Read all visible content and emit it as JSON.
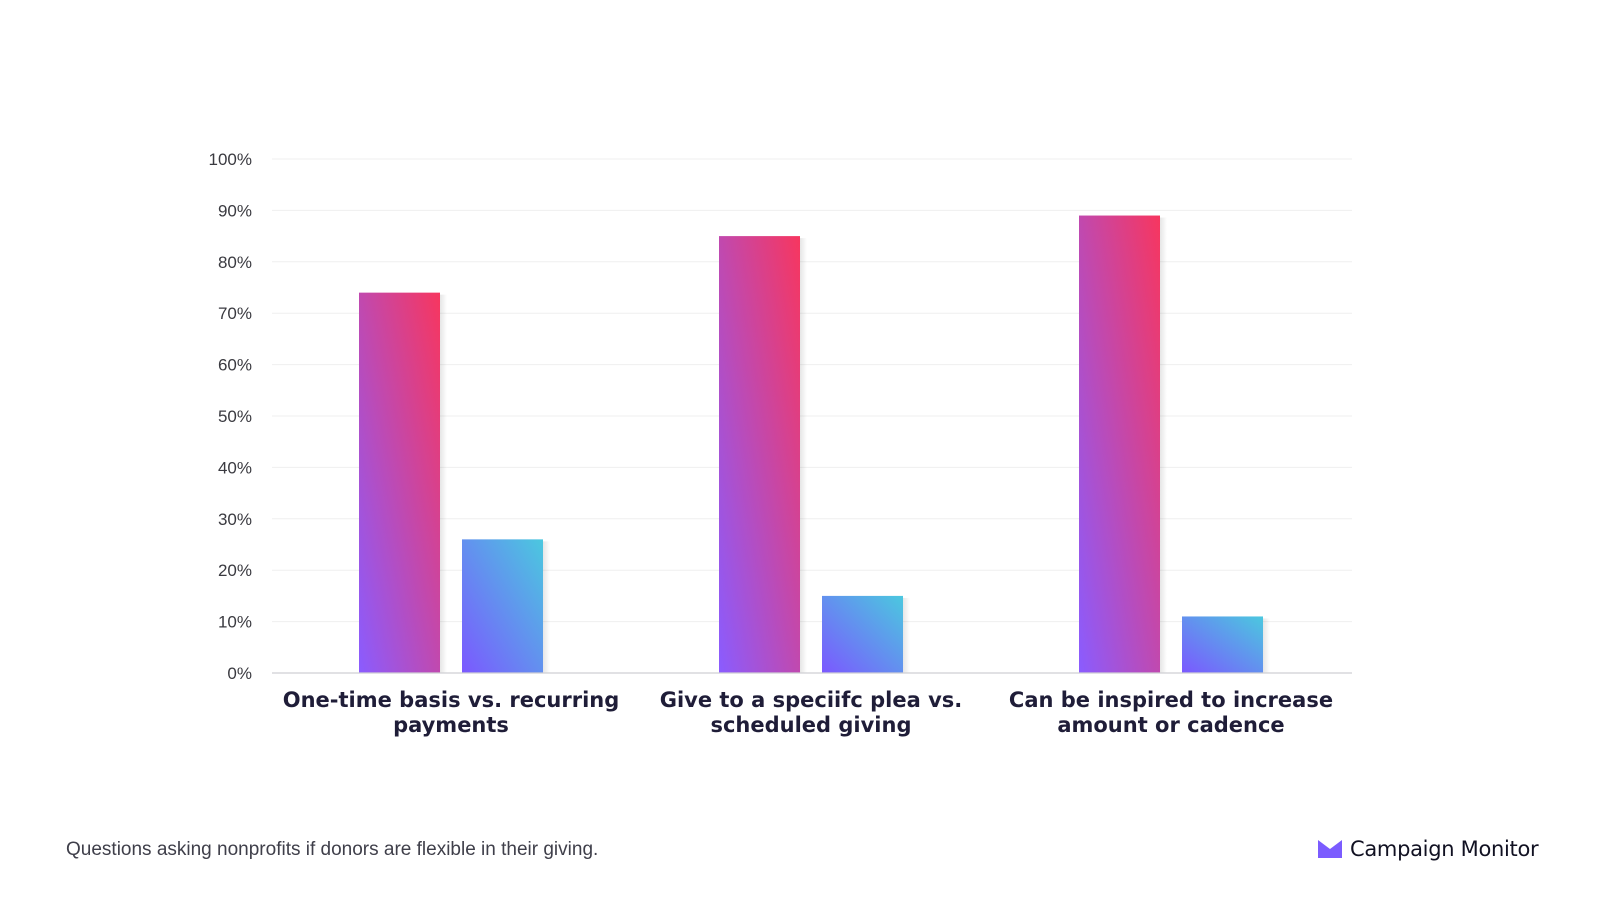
{
  "colors": {
    "primary_bar_top": "#f7365f",
    "primary_bar_bottom": "#8a5cff",
    "secondary_bar_top": "#4bc8df",
    "secondary_bar_bottom": "#7b58ff",
    "grid": "#efefef",
    "text": "#1f1d38",
    "brand_accent": "#7b5cff"
  },
  "chart_data": {
    "type": "bar",
    "title": "",
    "xlabel": "",
    "ylabel": "",
    "ylim": [
      0,
      100
    ],
    "y_ticks": [
      "0%",
      "10%",
      "20%",
      "30%",
      "40%",
      "50%",
      "60%",
      "70%",
      "80%",
      "90%",
      "100%"
    ],
    "categories": [
      [
        "One-time basis vs. recurring",
        "payments"
      ],
      [
        "Give to a speciifc plea vs.",
        "scheduled giving"
      ],
      [
        "Can be inspired to increase",
        "amount or cadence"
      ]
    ],
    "series": [
      {
        "values": [
          74,
          85,
          89
        ]
      },
      {
        "values": [
          26,
          15,
          11
        ]
      }
    ],
    "grid": true,
    "legend": "none"
  },
  "caption": "Questions asking nonprofits if donors are flexible in their giving.",
  "brand": {
    "name": "Campaign Monitor",
    "icon": "envelope-logo-icon"
  }
}
